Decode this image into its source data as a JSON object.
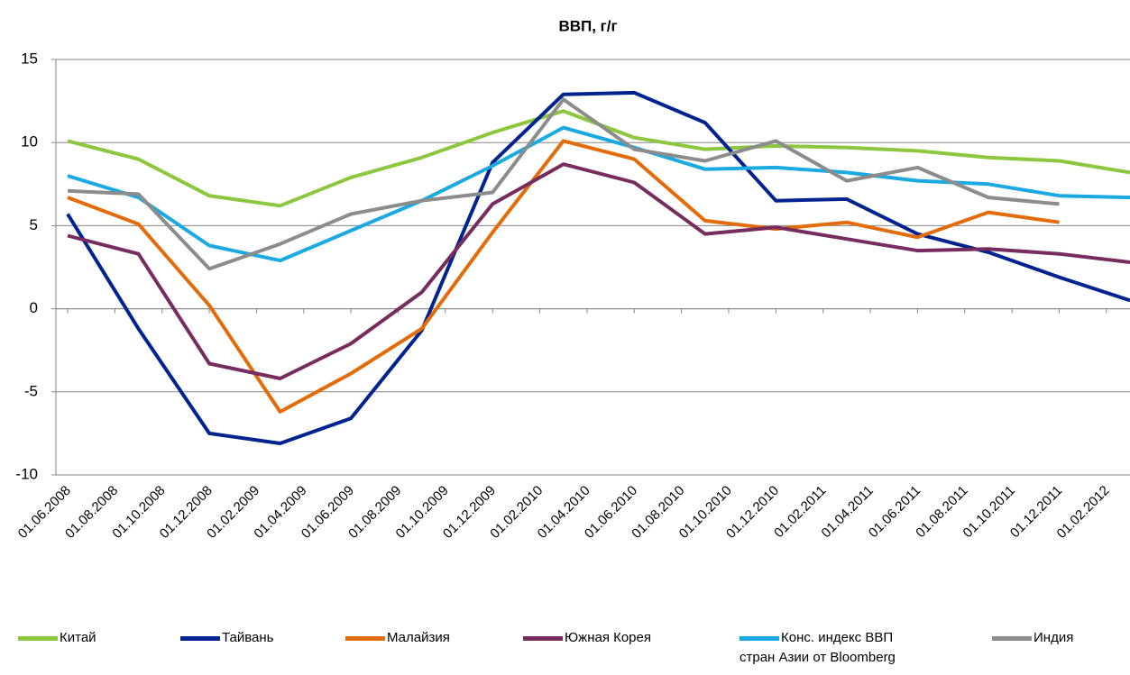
{
  "chart_data": {
    "type": "line",
    "title": "ВВП, г/г",
    "x": [
      "01.06.2008",
      "01.09.2008",
      "01.12.2008",
      "01.03.2009",
      "01.06.2009",
      "01.09.2009",
      "01.12.2009",
      "01.03.2010",
      "01.06.2010",
      "01.09.2010",
      "01.12.2010",
      "01.03.2011",
      "01.06.2011",
      "01.09.2011",
      "01.12.2011",
      "01.03.2012"
    ],
    "xlim": [
      "01.06.2008",
      "01.03.2012"
    ],
    "xticks": [
      "01.06.2008",
      "01.08.2008",
      "01.10.2008",
      "01.12.2008",
      "01.02.2009",
      "01.04.2009",
      "01.06.2009",
      "01.08.2009",
      "01.10.2009",
      "01.12.2009",
      "01.02.2010",
      "01.04.2010",
      "01.06.2010",
      "01.08.2010",
      "01.10.2010",
      "01.12.2010",
      "01.02.2011",
      "01.04.2011",
      "01.06.2011",
      "01.08.2011",
      "01.10.2011",
      "01.12.2011",
      "01.02.2012"
    ],
    "ylim": [
      -10,
      15
    ],
    "yticks": [
      -10,
      -5,
      0,
      5,
      10,
      15
    ],
    "grid": true,
    "legend": "bottom",
    "series": [
      {
        "name": "Китай",
        "color": "#8dc63f",
        "values": [
          10.1,
          9.0,
          6.8,
          6.2,
          7.9,
          9.1,
          10.6,
          11.9,
          10.3,
          9.6,
          9.8,
          9.7,
          9.5,
          9.1,
          8.9,
          8.2
        ]
      },
      {
        "name": "Тайвань",
        "color": "#00238f",
        "values": [
          5.7,
          -1.2,
          -7.5,
          -8.1,
          -6.6,
          -1.3,
          8.8,
          12.9,
          13.0,
          11.2,
          6.5,
          6.6,
          4.5,
          3.4,
          1.9,
          0.5
        ]
      },
      {
        "name": "Малайзия",
        "color": "#e36c0a",
        "values": [
          6.7,
          5.1,
          0.2,
          -6.2,
          -3.9,
          -1.2,
          4.6,
          10.1,
          9.0,
          5.3,
          4.8,
          5.2,
          4.3,
          5.8,
          5.2,
          null
        ]
      },
      {
        "name": "Южная Корея",
        "color": "#772c5e",
        "values": [
          4.4,
          3.3,
          -3.3,
          -4.2,
          -2.1,
          1.0,
          6.3,
          8.7,
          7.6,
          4.5,
          4.9,
          4.2,
          3.5,
          3.6,
          3.3,
          2.8
        ]
      },
      {
        "name": "Конс. индекс ВВП стран Азии от Bloomberg",
        "color": "#1aa9e0",
        "values": [
          8.0,
          6.7,
          3.8,
          2.9,
          4.7,
          6.5,
          8.6,
          10.9,
          9.7,
          8.4,
          8.5,
          8.2,
          7.7,
          7.5,
          6.8,
          6.7
        ]
      },
      {
        "name": "Индия",
        "color": "#8c8c8c",
        "values": [
          7.1,
          6.9,
          2.4,
          3.9,
          5.7,
          6.5,
          7.0,
          12.6,
          9.6,
          8.9,
          10.1,
          7.7,
          8.5,
          6.7,
          6.3,
          null
        ]
      }
    ]
  }
}
